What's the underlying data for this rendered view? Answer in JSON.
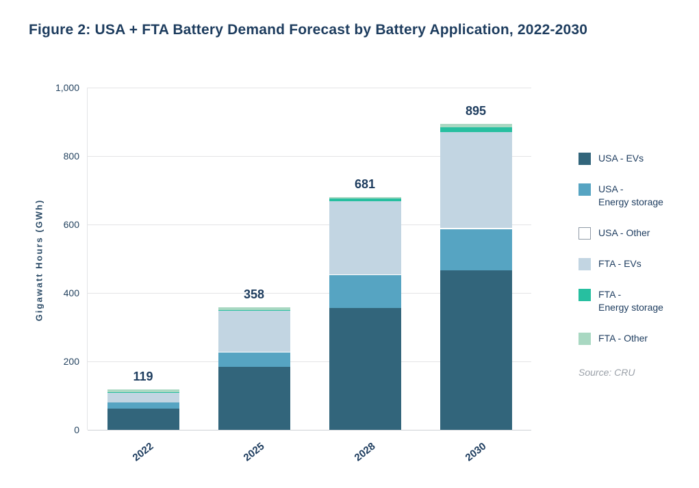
{
  "figure": {
    "title": "Figure 2: USA + FTA Battery Demand Forecast by Battery Application, 2022-2030",
    "source": "Source: CRU"
  },
  "chart_data": {
    "type": "bar",
    "stacked": true,
    "title": "Figure 2: USA + FTA Battery Demand Forecast by Battery Application, 2022-2030",
    "xlabel": "",
    "ylabel": "Gigawatt Hours (GWh)",
    "ylim": [
      0,
      1000
    ],
    "yticks": [
      "1,000",
      "800",
      "600",
      "400",
      "200",
      "0"
    ],
    "grid": true,
    "legend_position": "right",
    "categories": [
      "2022",
      "2025",
      "2028",
      "2030"
    ],
    "totals": [
      119,
      358,
      681,
      895
    ],
    "series": [
      {
        "name": "USA - EVs",
        "legend_label": "USA - EVs",
        "color": "#32657b",
        "values": [
          62,
          185,
          357,
          467
        ]
      },
      {
        "name": "USA - Energy storage",
        "legend_label": "USA -\nEnergy storage",
        "color": "#56a4c2",
        "values": [
          18,
          42,
          95,
          120
        ]
      },
      {
        "name": "USA - Other",
        "legend_label": "USA - Other",
        "color": "#ffffff",
        "values": [
          1,
          1,
          2,
          3
        ]
      },
      {
        "name": "FTA - EVs",
        "legend_label": "FTA - EVs",
        "color": "#c2d5e2",
        "values": [
          28,
          120,
          215,
          280
        ]
      },
      {
        "name": "FTA - Energy storage",
        "legend_label": "FTA -\nEnergy storage",
        "color": "#27bfa0",
        "values": [
          2,
          3,
          8,
          15
        ]
      },
      {
        "name": "FTA - Other",
        "legend_label": "FTA - Other",
        "color": "#a9d8c2",
        "values": [
          8,
          7,
          4,
          10
        ]
      }
    ]
  }
}
